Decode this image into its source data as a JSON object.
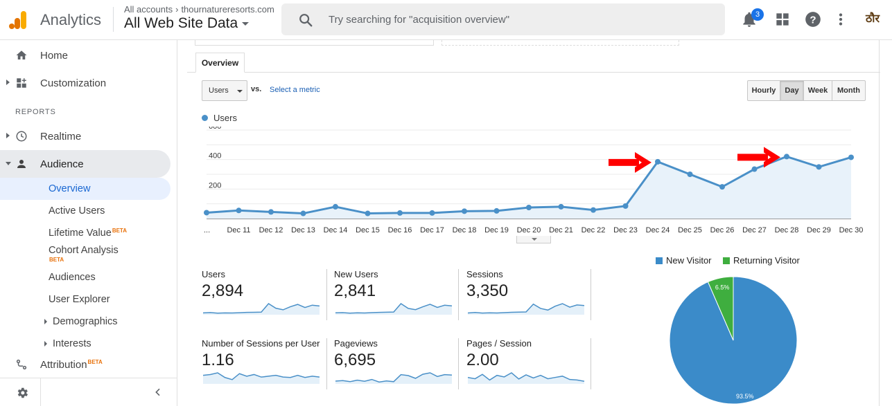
{
  "header": {
    "app_name": "Analytics",
    "breadcrumb_root": "All accounts",
    "breadcrumb_account": "thournatureresorts.com",
    "view_name": "All Web Site Data",
    "search_placeholder": "Try searching for \"acquisition overview\"",
    "notification_count": "3",
    "avatar_text": "ठौर"
  },
  "sidebar": {
    "home": "Home",
    "customization": "Customization",
    "reports_label": "REPORTS",
    "realtime": "Realtime",
    "audience": "Audience",
    "audience_items": [
      "Overview",
      "Active Users",
      "Lifetime Value",
      "Cohort Analysis",
      "Audiences",
      "User Explorer",
      "Demographics",
      "Interests"
    ],
    "beta": "BETA",
    "attribution": "Attribution"
  },
  "main": {
    "tab_overview": "Overview",
    "metric_select": "Users",
    "vs_label": "vs.",
    "select_metric": "Select a metric",
    "ranges": [
      "Hourly",
      "Day",
      "Week",
      "Month"
    ],
    "active_range": "Day"
  },
  "chart_data": [
    {
      "type": "line",
      "series": [
        {
          "name": "Users",
          "values": [
            40,
            55,
            45,
            35,
            80,
            35,
            38,
            38,
            50,
            52,
            75,
            80,
            58,
            85,
            385,
            300,
            215,
            335,
            420,
            350,
            415
          ]
        }
      ],
      "x": [
        "...",
        "Dec 11",
        "Dec 12",
        "Dec 13",
        "Dec 14",
        "Dec 15",
        "Dec 16",
        "Dec 17",
        "Dec 18",
        "Dec 19",
        "Dec 20",
        "Dec 21",
        "Dec 22",
        "Dec 23",
        "Dec 24",
        "Dec 25",
        "Dec 26",
        "Dec 27",
        "Dec 28",
        "Dec 29",
        "Dec 30"
      ],
      "ytick_labels": [
        "600",
        "400",
        "200"
      ],
      "ylim": [
        0,
        600
      ],
      "annotation_arrows_at": [
        "Dec 24",
        "Dec 28"
      ],
      "colors": {
        "line": "#4a90c8",
        "area": "#e8f2fa",
        "arrow": "#ff0000"
      }
    },
    {
      "type": "pie",
      "categories": [
        "New Visitor",
        "Returning Visitor"
      ],
      "values": [
        93.5,
        6.5
      ],
      "labels": [
        "93.5%",
        "6.5%"
      ],
      "colors": [
        "#3b8bc9",
        "#3fae3f"
      ]
    }
  ],
  "scorecards": [
    {
      "label": "Users",
      "value": "2,894",
      "spark": [
        30,
        32,
        28,
        30,
        29,
        31,
        33,
        34,
        35,
        90,
        60,
        50,
        70,
        85,
        65,
        80,
        75
      ]
    },
    {
      "label": "New Users",
      "value": "2,841",
      "spark": [
        30,
        31,
        28,
        30,
        29,
        31,
        33,
        34,
        35,
        88,
        58,
        50,
        68,
        84,
        64,
        78,
        74
      ]
    },
    {
      "label": "Sessions",
      "value": "3,350",
      "spark": [
        30,
        33,
        29,
        31,
        30,
        32,
        34,
        35,
        36,
        85,
        58,
        48,
        72,
        88,
        66,
        80,
        76
      ]
    },
    {
      "label": "Number of Sessions per User",
      "value": "1.16",
      "spark": [
        60,
        62,
        66,
        55,
        50,
        64,
        58,
        62,
        56,
        58,
        60,
        56,
        55,
        60,
        55,
        58,
        56
      ]
    },
    {
      "label": "Pageviews",
      "value": "6,695",
      "spark": [
        25,
        28,
        22,
        30,
        24,
        34,
        20,
        26,
        22,
        60,
        55,
        40,
        62,
        70,
        50,
        60,
        58
      ]
    },
    {
      "label": "Pages / Session",
      "value": "2.00",
      "spark": [
        50,
        45,
        62,
        40,
        58,
        52,
        68,
        44,
        60,
        48,
        58,
        45,
        50,
        55,
        42,
        40,
        35
      ]
    }
  ]
}
